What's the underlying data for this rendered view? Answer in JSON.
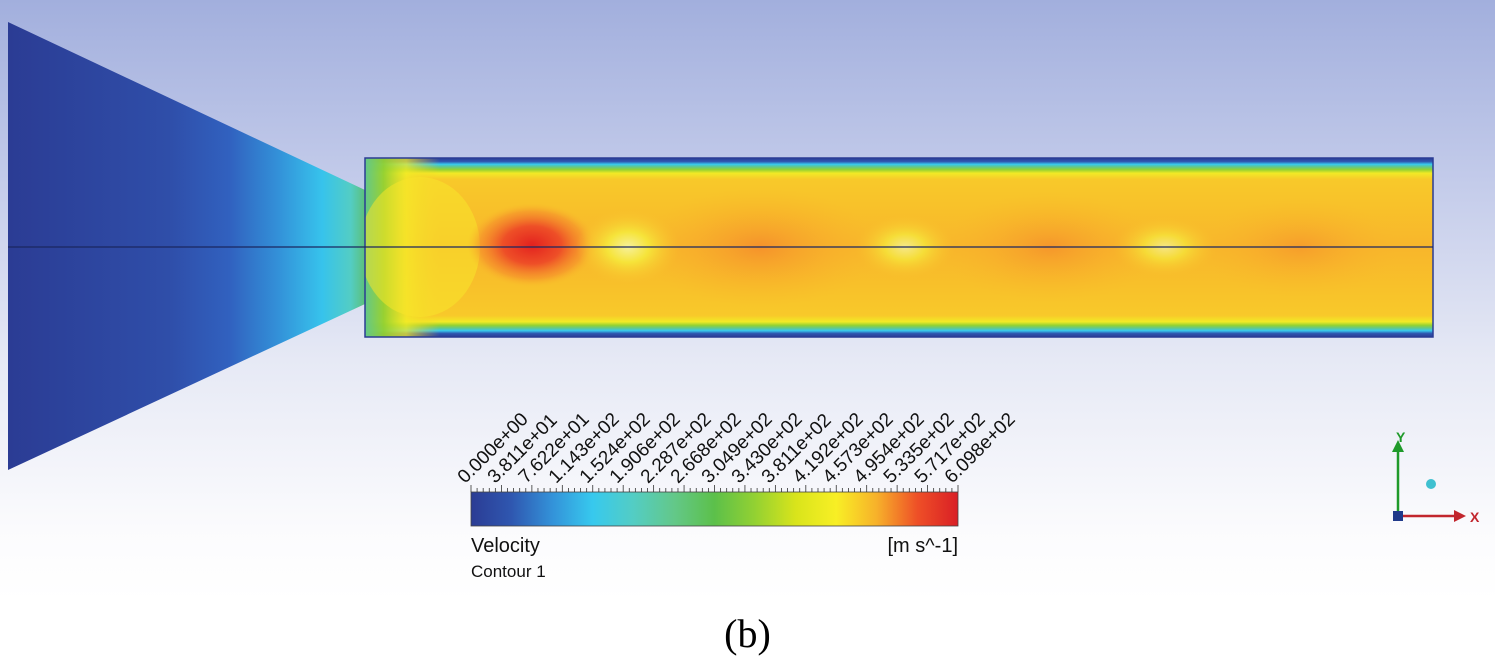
{
  "contour": {
    "variable": "Velocity",
    "name": "Contour 1",
    "units": "[m s^-1]",
    "ticks": [
      "0.000e+00",
      "3.811e+01",
      "7.622e+01",
      "1.143e+02",
      "1.524e+02",
      "1.906e+02",
      "2.287e+02",
      "2.668e+02",
      "3.049e+02",
      "3.430e+02",
      "3.811e+02",
      "4.192e+02",
      "4.573e+02",
      "4.954e+02",
      "5.335e+02",
      "5.717e+02",
      "6.098e+02"
    ],
    "colormap": [
      "#2b3c94",
      "#2f57b0",
      "#3392d9",
      "#37c9ee",
      "#53cdc4",
      "#63c889",
      "#5cc04a",
      "#93d132",
      "#d9e41b",
      "#f8ef25",
      "#f7b12a",
      "#ee4f27",
      "#d91f26"
    ]
  },
  "triad": {
    "y_label": "Y",
    "x_label": "X"
  },
  "caption": "(b)"
}
